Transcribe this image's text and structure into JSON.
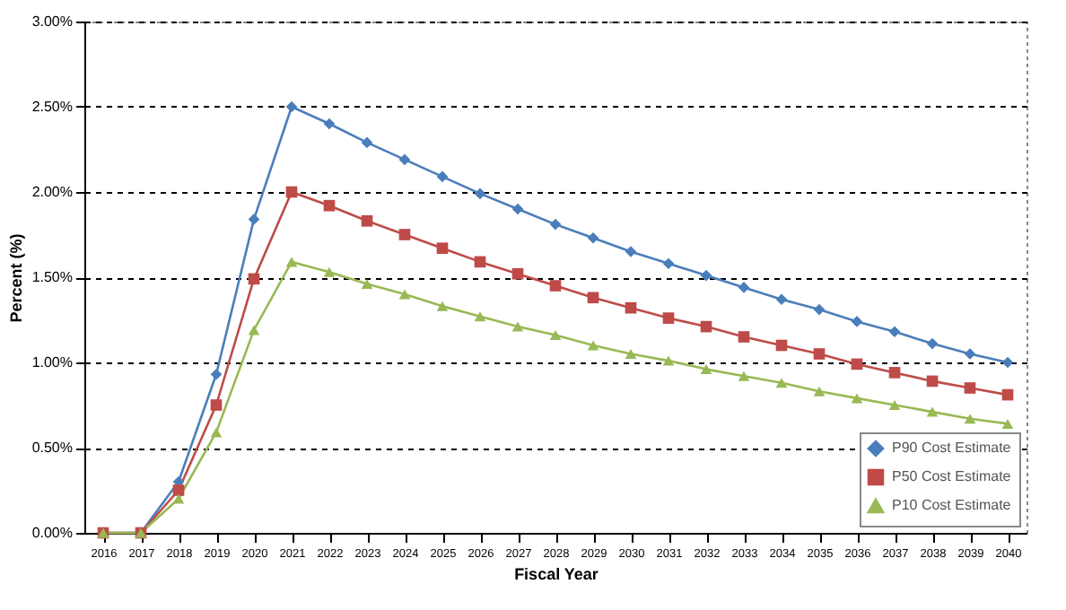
{
  "chart_data": {
    "type": "line",
    "xlabel": "Fiscal Year",
    "ylabel": "Percent (%)",
    "categories": [
      "2016",
      "2017",
      "2018",
      "2019",
      "2020",
      "2021",
      "2022",
      "2023",
      "2024",
      "2025",
      "2026",
      "2027",
      "2028",
      "2029",
      "2030",
      "2031",
      "2032",
      "2033",
      "2034",
      "2035",
      "2036",
      "2037",
      "2038",
      "2039",
      "2040"
    ],
    "series": [
      {
        "name": "P90 Cost Estimate",
        "color": "#4a7ebb",
        "marker": "diamond",
        "values": [
          0,
          0,
          0.3,
          0.93,
          1.84,
          2.5,
          2.4,
          2.29,
          2.19,
          2.09,
          1.99,
          1.9,
          1.81,
          1.73,
          1.65,
          1.58,
          1.51,
          1.44,
          1.37,
          1.31,
          1.24,
          1.18,
          1.11,
          1.05,
          1.0
        ]
      },
      {
        "name": "P50 Cost Estimate",
        "color": "#be4b48",
        "marker": "square",
        "values": [
          0,
          0,
          0.25,
          0.75,
          1.49,
          2.0,
          1.92,
          1.83,
          1.75,
          1.67,
          1.59,
          1.52,
          1.45,
          1.38,
          1.32,
          1.26,
          1.21,
          1.15,
          1.1,
          1.05,
          0.99,
          0.94,
          0.89,
          0.85,
          0.81
        ]
      },
      {
        "name": "P10 Cost Estimate",
        "color": "#98b954",
        "marker": "triangle",
        "values": [
          0,
          0,
          0.2,
          0.59,
          1.19,
          1.59,
          1.53,
          1.46,
          1.4,
          1.33,
          1.27,
          1.21,
          1.16,
          1.1,
          1.05,
          1.01,
          0.96,
          0.92,
          0.88,
          0.83,
          0.79,
          0.75,
          0.71,
          0.67,
          0.64
        ]
      }
    ],
    "ylim": [
      0,
      3
    ],
    "yticks": [
      {
        "value": 0,
        "label": "0.00%"
      },
      {
        "value": 0.5,
        "label": "0.50%"
      },
      {
        "value": 1,
        "label": "1.00%"
      },
      {
        "value": 1.5,
        "label": "1.50%"
      },
      {
        "value": 2,
        "label": "2.00%"
      },
      {
        "value": 2.5,
        "label": "2.50%"
      },
      {
        "value": 3,
        "label": "3.00%"
      }
    ],
    "grid": "y",
    "legend": "bottom right",
    "line_style": "solid"
  }
}
